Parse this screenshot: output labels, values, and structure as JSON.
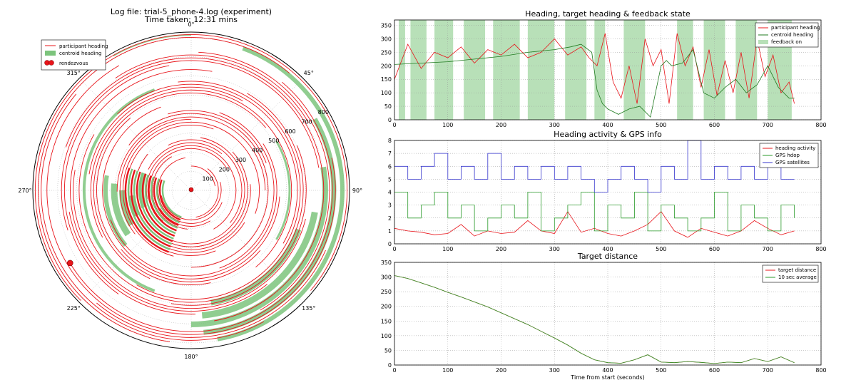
{
  "polar": {
    "title_line1": "Log file: trial-5_phone-4.log (experiment)",
    "title_line2": "Time taken: 12:31 mins",
    "angle_labels": [
      "0°",
      "45°",
      "90°",
      "135°",
      "180°",
      "225°",
      "270°",
      "315°"
    ],
    "radial_labels": [
      "100",
      "200",
      "300",
      "400",
      "500",
      "600",
      "700",
      "800"
    ],
    "legend": [
      "participant heading",
      "centroid heading",
      "rendezvous"
    ],
    "colors": {
      "participant": "#e8141a",
      "centroid": "#7cc47c",
      "rendezvous": "#e8141a"
    }
  },
  "chart_data": [
    {
      "type": "line",
      "title": "Heading, target heading & feedback state",
      "xlim": [
        0,
        800
      ],
      "ylim": [
        0,
        370
      ],
      "xticks": [
        "0",
        "100",
        "200",
        "300",
        "400",
        "500",
        "600",
        "700",
        "800"
      ],
      "yticks": [
        "0",
        "50",
        "100",
        "150",
        "200",
        "250",
        "300",
        "350"
      ],
      "grid": true,
      "legend_position": "top-right",
      "series": [
        {
          "name": "participant heading",
          "color": "#e8141a",
          "x": [
            0,
            25,
            50,
            75,
            100,
            125,
            150,
            175,
            200,
            225,
            250,
            275,
            300,
            325,
            350,
            365,
            380,
            395,
            410,
            425,
            440,
            455,
            470,
            485,
            500,
            515,
            530,
            545,
            560,
            575,
            590,
            605,
            620,
            635,
            650,
            665,
            680,
            695,
            710,
            725,
            740,
            750
          ],
          "y": [
            150,
            280,
            190,
            250,
            230,
            270,
            210,
            260,
            240,
            280,
            230,
            250,
            300,
            240,
            270,
            230,
            200,
            320,
            140,
            80,
            200,
            60,
            300,
            200,
            260,
            60,
            320,
            200,
            270,
            120,
            260,
            90,
            220,
            100,
            250,
            80,
            300,
            160,
            240,
            100,
            140,
            60
          ]
        },
        {
          "name": "centroid heading",
          "color": "#1f7a1f",
          "x": [
            0,
            50,
            100,
            150,
            200,
            250,
            300,
            330,
            350,
            370,
            380,
            390,
            400,
            420,
            440,
            460,
            480,
            500,
            510,
            520,
            540,
            560,
            580,
            600,
            620,
            640,
            660,
            680,
            700,
            720,
            740,
            750
          ],
          "y": [
            205,
            210,
            215,
            225,
            235,
            250,
            260,
            270,
            280,
            250,
            110,
            60,
            40,
            20,
            40,
            50,
            10,
            200,
            220,
            200,
            210,
            260,
            100,
            80,
            120,
            150,
            100,
            130,
            200,
            120,
            80,
            80
          ]
        }
      ],
      "feedback_on": {
        "name": "feedback on",
        "color": "#b8e0b8",
        "intervals": [
          [
            8,
            20
          ],
          [
            30,
            60
          ],
          [
            75,
            110
          ],
          [
            130,
            170
          ],
          [
            185,
            235
          ],
          [
            250,
            300
          ],
          [
            320,
            360
          ],
          [
            375,
            395
          ],
          [
            430,
            470
          ],
          [
            530,
            560
          ],
          [
            580,
            620
          ],
          [
            640,
            680
          ],
          [
            700,
            745
          ]
        ]
      }
    },
    {
      "type": "line",
      "title": "Heading activity & GPS info",
      "xlim": [
        0,
        800
      ],
      "ylim": [
        0,
        8
      ],
      "xticks": [
        "0",
        "100",
        "200",
        "300",
        "400",
        "500",
        "600",
        "700",
        "800"
      ],
      "yticks": [
        "0",
        "1",
        "2",
        "3",
        "4",
        "5",
        "6",
        "7",
        "8"
      ],
      "grid": true,
      "legend_position": "top-right",
      "series": [
        {
          "name": "heading activity",
          "color": "#e8141a",
          "x": [
            0,
            25,
            50,
            75,
            100,
            125,
            150,
            175,
            200,
            225,
            250,
            275,
            300,
            325,
            350,
            375,
            400,
            425,
            450,
            475,
            500,
            525,
            550,
            575,
            600,
            625,
            650,
            675,
            700,
            725,
            750
          ],
          "y": [
            1.2,
            1.0,
            0.9,
            0.7,
            0.8,
            1.5,
            0.6,
            1.0,
            0.8,
            0.9,
            1.8,
            1.0,
            0.8,
            2.5,
            0.9,
            1.2,
            0.8,
            0.6,
            1.0,
            1.5,
            2.5,
            1.0,
            0.5,
            1.2,
            0.9,
            0.6,
            1.0,
            1.8,
            1.2,
            0.7,
            1.0
          ]
        },
        {
          "name": "GPS hdop",
          "color": "#2a9a2a",
          "x": [
            0,
            25,
            50,
            75,
            100,
            125,
            150,
            175,
            200,
            225,
            250,
            275,
            300,
            325,
            350,
            375,
            400,
            425,
            450,
            475,
            500,
            525,
            550,
            575,
            600,
            625,
            650,
            675,
            700,
            725,
            750
          ],
          "y": [
            4,
            2,
            3,
            4,
            2,
            3,
            1,
            2,
            3,
            2,
            4,
            1,
            2,
            3,
            4,
            1,
            3,
            2,
            4,
            1,
            3,
            2,
            1,
            2,
            4,
            1,
            3,
            2,
            1,
            3,
            2
          ]
        },
        {
          "name": "GPS satellites",
          "color": "#3333cc",
          "x": [
            0,
            25,
            50,
            75,
            100,
            125,
            150,
            175,
            200,
            225,
            250,
            275,
            300,
            325,
            350,
            375,
            400,
            425,
            450,
            475,
            500,
            525,
            550,
            575,
            600,
            625,
            650,
            675,
            700,
            725,
            750
          ],
          "y": [
            6,
            5,
            6,
            7,
            5,
            6,
            5,
            7,
            5,
            6,
            5,
            6,
            5,
            6,
            5,
            4,
            5,
            6,
            5,
            4,
            6,
            5,
            8,
            5,
            6,
            5,
            6,
            5,
            6,
            5,
            5
          ]
        }
      ]
    },
    {
      "type": "line",
      "title": "Target distance",
      "xlabel": "Time from start (seconds)",
      "xlim": [
        0,
        800
      ],
      "ylim": [
        0,
        350
      ],
      "xticks": [
        "0",
        "100",
        "200",
        "300",
        "400",
        "500",
        "600",
        "700",
        "800"
      ],
      "yticks": [
        "0",
        "50",
        "100",
        "150",
        "200",
        "250",
        "300",
        "350"
      ],
      "grid": true,
      "legend_position": "top-right",
      "series": [
        {
          "name": "target distance",
          "color": "#e8141a",
          "x": [
            0,
            25,
            50,
            75,
            100,
            125,
            150,
            175,
            200,
            225,
            250,
            275,
            300,
            325,
            350,
            375,
            400,
            425,
            450,
            475,
            500,
            525,
            550,
            575,
            600,
            625,
            650,
            675,
            700,
            725,
            750
          ],
          "y": [
            305,
            295,
            280,
            265,
            248,
            232,
            215,
            198,
            178,
            158,
            138,
            115,
            92,
            68,
            40,
            18,
            8,
            6,
            18,
            35,
            10,
            8,
            12,
            9,
            5,
            10,
            8,
            22,
            12,
            28,
            8
          ]
        },
        {
          "name": "10 sec average",
          "color": "#2a9a2a",
          "x": [
            0,
            25,
            50,
            75,
            100,
            125,
            150,
            175,
            200,
            225,
            250,
            275,
            300,
            325,
            350,
            375,
            400,
            425,
            450,
            475,
            500,
            525,
            550,
            575,
            600,
            625,
            650,
            675,
            700,
            725,
            750
          ],
          "y": [
            305,
            295,
            280,
            265,
            248,
            232,
            215,
            198,
            178,
            158,
            138,
            115,
            92,
            68,
            40,
            18,
            8,
            6,
            18,
            35,
            10,
            8,
            12,
            9,
            5,
            10,
            8,
            22,
            12,
            28,
            8
          ]
        }
      ]
    }
  ]
}
